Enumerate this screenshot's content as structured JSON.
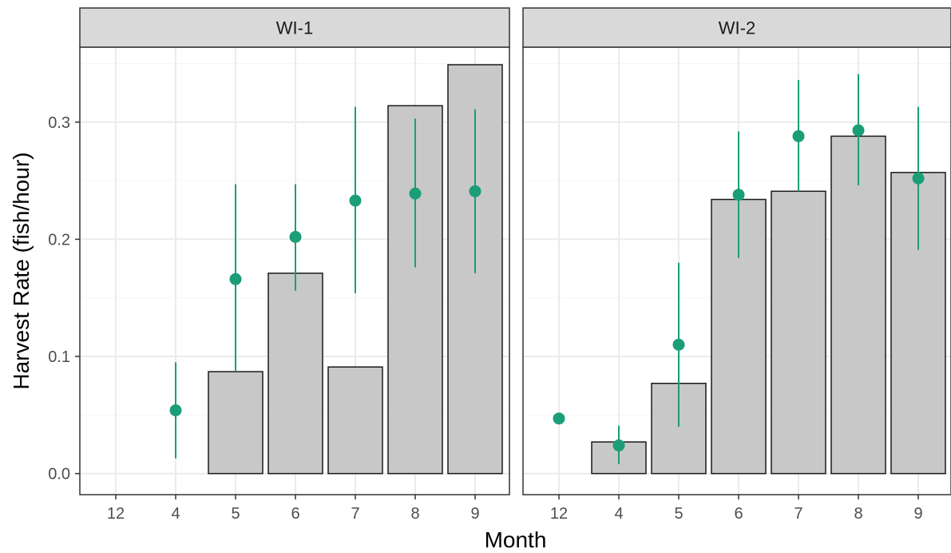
{
  "chart_data": {
    "type": "bar",
    "xlabel": "Month",
    "ylabel": "Harvest Rate (fish/hour)",
    "ylim": [
      -0.018,
      0.364
    ],
    "yticks": [
      0.0,
      0.1,
      0.2,
      0.3
    ],
    "ytick_labels": [
      "0.0",
      "0.1",
      "0.2",
      "0.3"
    ],
    "grid": true,
    "categories": [
      "12",
      "4",
      "5",
      "6",
      "7",
      "8",
      "9"
    ],
    "colors": {
      "bar_fill": "#c8c8c8",
      "bar_stroke": "#1a1a1a",
      "point": "#1b9e77",
      "strip_fill": "#d9d9d9",
      "grid_major": "#ebebeb",
      "grid_minor": "#f5f5f5"
    },
    "panels": [
      {
        "strip": "WI-1",
        "bars": [
          null,
          null,
          0.087,
          0.171,
          0.091,
          0.314,
          0.349
        ],
        "points": [
          null,
          0.054,
          0.166,
          0.202,
          0.233,
          0.239,
          0.241
        ],
        "lower": [
          null,
          0.013,
          0.087,
          0.156,
          0.154,
          0.176,
          0.171
        ],
        "upper": [
          null,
          0.095,
          0.247,
          0.247,
          0.313,
          0.303,
          0.311
        ]
      },
      {
        "strip": "WI-2",
        "bars": [
          null,
          0.027,
          0.077,
          0.234,
          0.241,
          0.288,
          0.257
        ],
        "points": [
          0.047,
          0.024,
          0.11,
          0.238,
          0.288,
          0.293,
          0.252
        ],
        "lower": [
          null,
          0.008,
          0.04,
          0.184,
          0.241,
          0.246,
          0.191
        ],
        "upper": [
          null,
          0.041,
          0.18,
          0.292,
          0.336,
          0.341,
          0.313
        ]
      }
    ]
  }
}
